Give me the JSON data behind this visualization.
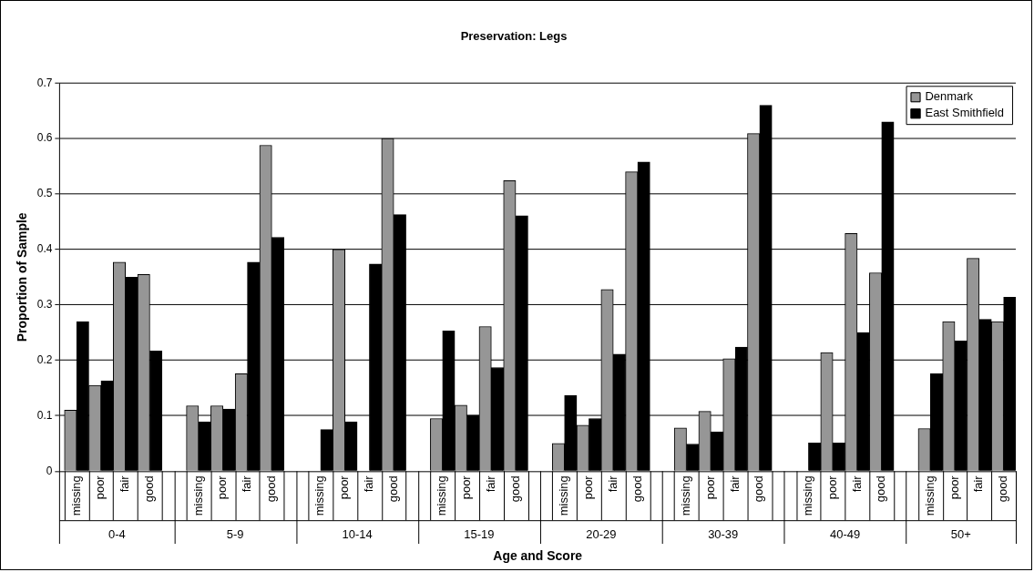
{
  "chart_data": {
    "type": "bar",
    "title": "Preservation: Legs",
    "xlabel": "Age and Score",
    "ylabel": "Proportion of Sample",
    "categories": [
      "missing",
      "poor",
      "fair",
      "good",
      "missing",
      "poor",
      "fair",
      "good",
      "missing",
      "poor",
      "fair",
      "good",
      "missing",
      "poor",
      "fair",
      "good",
      "missing",
      "poor",
      "fair",
      "good",
      "missing",
      "poor",
      "fair",
      "good",
      "missing",
      "poor",
      "fair",
      "good",
      "missing",
      "poor",
      "fair",
      "good"
    ],
    "series": [
      {
        "name": "Denmark",
        "color": "#969696",
        "values": [
          0.11,
          0.155,
          0.377,
          0.355,
          0.118,
          0.118,
          0.176,
          0.588,
          0,
          0.4,
          0,
          0.6,
          0.095,
          0.119,
          0.261,
          0.524,
          0.05,
          0.083,
          0.328,
          0.54,
          0.078,
          0.108,
          0.203,
          0.609,
          0,
          0.214,
          0.429,
          0.358,
          0.077,
          0.27,
          0.384,
          0.27
        ]
      },
      {
        "name": "East Smithfield",
        "color": "#000000",
        "values": [
          0.27,
          0.163,
          0.35,
          0.217,
          0.089,
          0.112,
          0.377,
          0.422,
          0.075,
          0.089,
          0.374,
          0.463,
          0.253,
          0.101,
          0.187,
          0.461,
          0.137,
          0.095,
          0.211,
          0.558,
          0.049,
          0.071,
          0.224,
          0.66,
          0.051,
          0.051,
          0.25,
          0.63,
          0.176,
          0.235,
          0.274,
          0.314
        ]
      }
    ],
    "annotations": [
      "0-4",
      "5-9",
      "10-14",
      "15-19",
      "20-29",
      "30-39",
      "40-49",
      "50+"
    ],
    "ylim": [
      0,
      0.7
    ],
    "yticks": [
      0,
      0.1,
      0.2,
      0.3,
      0.4,
      0.5,
      0.6,
      0.7
    ],
    "grid": "y",
    "legend": "top right"
  }
}
